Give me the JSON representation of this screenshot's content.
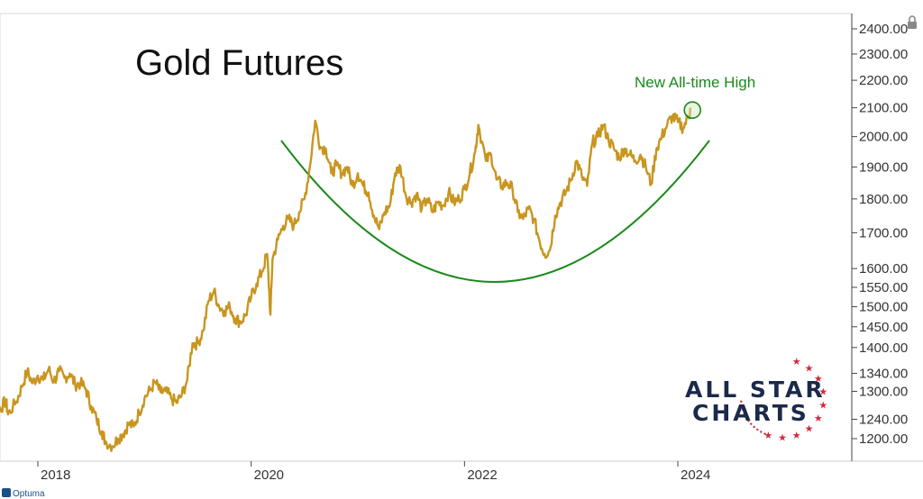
{
  "chart_data": {
    "type": "line",
    "title": "Gold Futures",
    "annotation": "New All-time High",
    "xlabel": "",
    "ylabel": "",
    "x_ticks": [
      "2018",
      "2020",
      "2022",
      "2024"
    ],
    "y_ticks": [
      "2400.00",
      "2300.00",
      "2200.00",
      "2100.00",
      "2000.00",
      "1900.00",
      "1800.00",
      "1700.00",
      "1600.00",
      "1550.00",
      "1500.00",
      "1450.00",
      "1400.00",
      "1340.00",
      "1300.00",
      "1240.00",
      "1200.00"
    ],
    "y_scale": "log",
    "ylim": [
      1150,
      2450
    ],
    "xlim": [
      2017.45,
      2025.4
    ],
    "grid": false,
    "series": [
      {
        "color": "#c8951e",
        "points": [
          [
            2017.45,
            1345
          ],
          [
            2017.5,
            1298
          ],
          [
            2017.55,
            1270
          ],
          [
            2017.6,
            1285
          ],
          [
            2017.65,
            1262
          ],
          [
            2017.7,
            1280
          ],
          [
            2017.72,
            1250
          ],
          [
            2017.8,
            1278
          ],
          [
            2017.85,
            1310
          ],
          [
            2017.9,
            1345
          ],
          [
            2017.95,
            1318
          ],
          [
            2018.0,
            1335
          ],
          [
            2018.05,
            1325
          ],
          [
            2018.1,
            1350
          ],
          [
            2018.15,
            1322
          ],
          [
            2018.2,
            1345
          ],
          [
            2018.25,
            1330
          ],
          [
            2018.3,
            1340
          ],
          [
            2018.35,
            1315
          ],
          [
            2018.4,
            1318
          ],
          [
            2018.45,
            1305
          ],
          [
            2018.5,
            1268
          ],
          [
            2018.55,
            1240
          ],
          [
            2018.6,
            1215
          ],
          [
            2018.63,
            1195
          ],
          [
            2018.7,
            1185
          ],
          [
            2018.75,
            1200
          ],
          [
            2018.8,
            1210
          ],
          [
            2018.85,
            1230
          ],
          [
            2018.9,
            1225
          ],
          [
            2018.95,
            1255
          ],
          [
            2019.0,
            1285
          ],
          [
            2019.05,
            1302
          ],
          [
            2019.1,
            1320
          ],
          [
            2019.15,
            1298
          ],
          [
            2019.2,
            1300
          ],
          [
            2019.25,
            1285
          ],
          [
            2019.3,
            1275
          ],
          [
            2019.35,
            1292
          ],
          [
            2019.4,
            1325
          ],
          [
            2019.45,
            1410
          ],
          [
            2019.5,
            1410
          ],
          [
            2019.55,
            1440
          ],
          [
            2019.6,
            1515
          ],
          [
            2019.65,
            1540
          ],
          [
            2019.7,
            1500
          ],
          [
            2019.75,
            1490
          ],
          [
            2019.8,
            1500
          ],
          [
            2019.85,
            1470
          ],
          [
            2019.9,
            1462
          ],
          [
            2019.95,
            1480
          ],
          [
            2020.0,
            1525
          ],
          [
            2020.05,
            1560
          ],
          [
            2020.1,
            1590
          ],
          [
            2020.15,
            1640
          ],
          [
            2020.18,
            1480
          ],
          [
            2020.2,
            1625
          ],
          [
            2020.25,
            1680
          ],
          [
            2020.3,
            1720
          ],
          [
            2020.35,
            1740
          ],
          [
            2020.4,
            1720
          ],
          [
            2020.45,
            1760
          ],
          [
            2020.5,
            1800
          ],
          [
            2020.55,
            1900
          ],
          [
            2020.6,
            2055
          ],
          [
            2020.65,
            1965
          ],
          [
            2020.7,
            1960
          ],
          [
            2020.75,
            1880
          ],
          [
            2020.8,
            1905
          ],
          [
            2020.85,
            1880
          ],
          [
            2020.9,
            1900
          ],
          [
            2020.95,
            1840
          ],
          [
            2021.0,
            1880
          ],
          [
            2021.05,
            1840
          ],
          [
            2021.1,
            1820
          ],
          [
            2021.15,
            1750
          ],
          [
            2021.2,
            1710
          ],
          [
            2021.25,
            1760
          ],
          [
            2021.3,
            1780
          ],
          [
            2021.35,
            1880
          ],
          [
            2021.4,
            1900
          ],
          [
            2021.45,
            1810
          ],
          [
            2021.5,
            1790
          ],
          [
            2021.55,
            1815
          ],
          [
            2021.6,
            1770
          ],
          [
            2021.65,
            1800
          ],
          [
            2021.7,
            1760
          ],
          [
            2021.75,
            1790
          ],
          [
            2021.8,
            1780
          ],
          [
            2021.85,
            1820
          ],
          [
            2021.9,
            1790
          ],
          [
            2021.95,
            1800
          ],
          [
            2022.0,
            1830
          ],
          [
            2022.05,
            1880
          ],
          [
            2022.1,
            1950
          ],
          [
            2022.13,
            2040
          ],
          [
            2022.2,
            1920
          ],
          [
            2022.25,
            1940
          ],
          [
            2022.3,
            1860
          ],
          [
            2022.35,
            1840
          ],
          [
            2022.4,
            1850
          ],
          [
            2022.45,
            1830
          ],
          [
            2022.5,
            1760
          ],
          [
            2022.55,
            1740
          ],
          [
            2022.6,
            1770
          ],
          [
            2022.65,
            1740
          ],
          [
            2022.7,
            1680
          ],
          [
            2022.75,
            1640
          ],
          [
            2022.8,
            1650
          ],
          [
            2022.85,
            1750
          ],
          [
            2022.9,
            1790
          ],
          [
            2022.95,
            1820
          ],
          [
            2023.0,
            1860
          ],
          [
            2023.05,
            1920
          ],
          [
            2023.1,
            1870
          ],
          [
            2023.15,
            1840
          ],
          [
            2023.2,
            1980
          ],
          [
            2023.25,
            2000
          ],
          [
            2023.3,
            2040
          ],
          [
            2023.35,
            1990
          ],
          [
            2023.4,
            1960
          ],
          [
            2023.45,
            1930
          ],
          [
            2023.5,
            1960
          ],
          [
            2023.55,
            1940
          ],
          [
            2023.6,
            1920
          ],
          [
            2023.65,
            1940
          ],
          [
            2023.7,
            1900
          ],
          [
            2023.75,
            1845
          ],
          [
            2023.8,
            1960
          ],
          [
            2023.85,
            2000
          ],
          [
            2023.9,
            2040
          ],
          [
            2023.95,
            2070
          ],
          [
            2024.0,
            2050
          ],
          [
            2024.05,
            2030
          ],
          [
            2024.1,
            2070
          ],
          [
            2024.12,
            2095
          ]
        ]
      }
    ]
  }
}
